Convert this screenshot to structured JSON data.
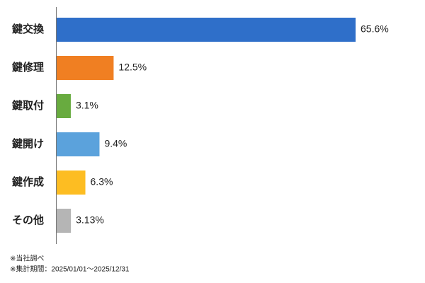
{
  "chart_data": {
    "type": "bar",
    "orientation": "horizontal",
    "categories": [
      "鍵交換",
      "鍵修理",
      "鍵取付",
      "鍵開け",
      "鍵作成",
      "その他"
    ],
    "values": [
      65.6,
      12.5,
      3.1,
      9.4,
      6.3,
      3.13
    ],
    "value_labels": [
      "65.6%",
      "12.5%",
      "3.1%",
      "9.4%",
      "6.3%",
      "3.13%"
    ],
    "colors": [
      "#2f6fc9",
      "#f07f22",
      "#68ab3f",
      "#5ba2dc",
      "#fdbd22",
      "#b5b5b5"
    ],
    "notes": [
      "※当社調べ",
      "※集計期間：2025/01/01～2025/12/31"
    ]
  }
}
